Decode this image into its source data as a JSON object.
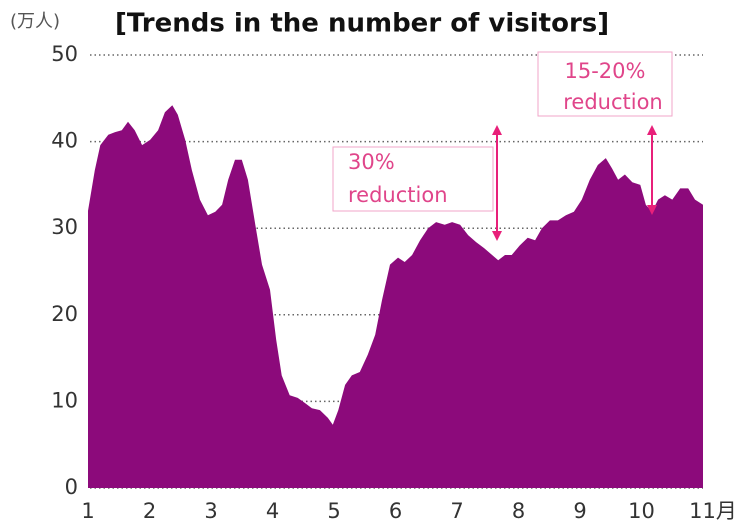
{
  "chart_data": {
    "type": "area",
    "title": "[Trends in the number of visitors]",
    "y_label": "(万人)",
    "color": "#8c0a7b",
    "x": [
      1.0,
      1.11,
      1.2,
      1.33,
      1.44,
      1.55,
      1.65,
      1.76,
      1.88,
      2.01,
      2.14,
      2.25,
      2.37,
      2.46,
      2.58,
      2.69,
      2.82,
      2.95,
      3.07,
      3.18,
      3.28,
      3.39,
      3.5,
      3.6,
      3.72,
      3.83,
      3.96,
      4.06,
      4.15,
      4.28,
      4.41,
      4.53,
      4.64,
      4.77,
      4.9,
      4.98,
      5.07,
      5.18,
      5.29,
      5.42,
      5.55,
      5.67,
      5.78,
      5.91,
      6.04,
      6.15,
      6.27,
      6.4,
      6.53,
      6.66,
      6.8,
      6.92,
      7.05,
      7.18,
      7.31,
      7.44,
      7.57,
      7.67,
      7.78,
      7.89,
      8.02,
      8.15,
      8.27,
      8.38,
      8.51,
      8.64,
      8.77,
      8.9,
      9.03,
      9.16,
      9.29,
      9.42,
      9.52,
      9.62,
      9.73,
      9.85,
      9.98,
      10.07,
      10.17,
      10.27,
      10.38,
      10.5,
      10.63,
      10.76,
      10.87,
      11.0
    ],
    "values": [
      32,
      36.7,
      39.6,
      40.8,
      41.1,
      41.3,
      42.3,
      41.3,
      39.6,
      40.2,
      41.3,
      43.4,
      44.2,
      43.1,
      40.2,
      36.7,
      33.3,
      31.5,
      31.9,
      32.7,
      35.6,
      37.9,
      37.9,
      35.6,
      30.4,
      25.8,
      22.9,
      17.1,
      13,
      10.7,
      10.4,
      9.8,
      9.2,
      9,
      8.1,
      7.3,
      9,
      11.9,
      13,
      13.4,
      15.4,
      17.7,
      21.7,
      25.8,
      26.6,
      26.1,
      26.9,
      28.6,
      30,
      30.7,
      30.4,
      30.7,
      30.4,
      29.2,
      28.4,
      27.7,
      26.9,
      26.3,
      26.9,
      26.9,
      28,
      28.9,
      28.6,
      30,
      30.9,
      30.9,
      31.5,
      31.9,
      33.3,
      35.6,
      37.3,
      38.1,
      36.9,
      35.6,
      36.2,
      35.3,
      35,
      32.7,
      31.9,
      33.3,
      33.8,
      33.3,
      34.6,
      34.6,
      33.3,
      32.7
    ],
    "xlim": [
      1,
      11
    ],
    "xticks": [
      1,
      2,
      3,
      4,
      5,
      6,
      7,
      8,
      9,
      10,
      {
        "value": 11,
        "label": "11月"
      }
    ],
    "ylim": [
      0,
      50
    ],
    "yticks": [
      0,
      10,
      20,
      30,
      40,
      50
    ],
    "grid": true,
    "annotations": [
      {
        "lines": [
          "30%",
          "reduction"
        ]
      },
      {
        "lines": [
          "15-20%",
          "reduction"
        ]
      }
    ]
  }
}
